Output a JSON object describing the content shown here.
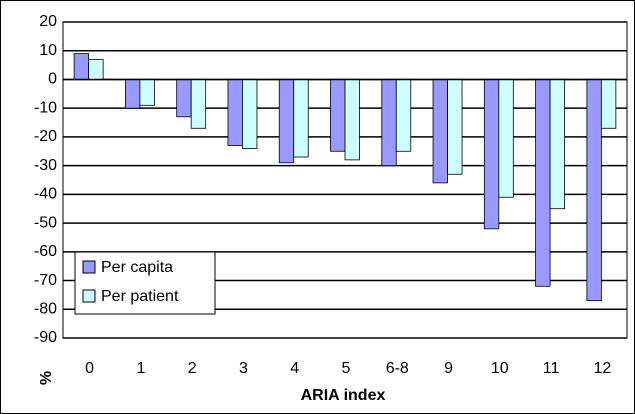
{
  "chart_data": {
    "type": "bar",
    "x_label": "ARIA index",
    "y_label": "%",
    "categories": [
      "0",
      "1",
      "2",
      "3",
      "4",
      "5",
      "6-8",
      "9",
      "10",
      "11",
      "12"
    ],
    "series": [
      {
        "name": "Per capita",
        "color": "#9999ff",
        "values": [
          9,
          -10,
          -13,
          -23,
          -29,
          -25,
          -30,
          -36,
          -52,
          -72,
          -77
        ]
      },
      {
        "name": "Per patient",
        "color": "#ccffff",
        "values": [
          7,
          -9,
          -17,
          -24,
          -27,
          -28,
          -25,
          -33,
          -41,
          -45,
          -17
        ]
      }
    ],
    "ylim": [
      -90,
      20
    ],
    "yticks": [
      20,
      10,
      0,
      -10,
      -20,
      -30,
      -40,
      -50,
      -60,
      -70,
      -80,
      -90
    ],
    "grid": true,
    "legend": "lower-left"
  }
}
